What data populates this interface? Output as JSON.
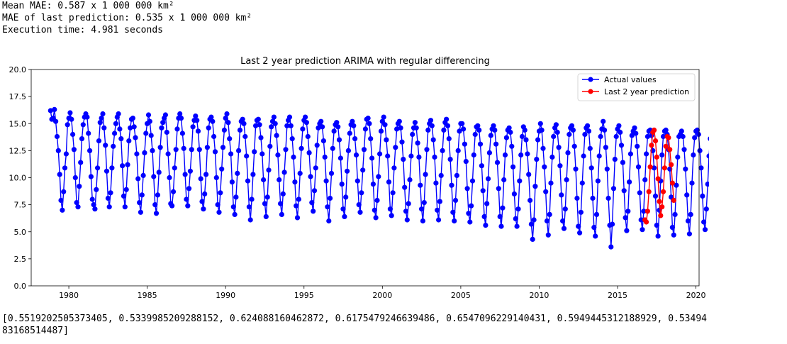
{
  "output": {
    "mean_mae": "Mean MAE: 0.587 x 1 000 000 km²",
    "last_mae": "MAE of last prediction: 0.535 x 1 000 000 km²",
    "exec_time": "Execution time: 4.981 seconds",
    "result_line1": "[0.5519202505373405, 0.5339985209288152, 0.624088160462872, 0.6175479246639486, 0.6547096229140431, 0.5949445312188929, 0.53494",
    "result_line2": "83168514487]"
  },
  "colors": {
    "actual": "#0000ff",
    "prediction": "#ff0000"
  },
  "chart_data": {
    "type": "line",
    "title": "Last 2 year prediction ARIMA with regular differencing",
    "xlabel": "",
    "ylabel": "",
    "xlim": [
      1977.6,
      2020.2
    ],
    "ylim": [
      0,
      20
    ],
    "xticks": [
      1980,
      1985,
      1990,
      1995,
      2000,
      2005,
      2010,
      2015,
      2020
    ],
    "yticks": [
      0.0,
      2.5,
      5.0,
      7.5,
      10.0,
      12.5,
      15.0,
      17.5,
      20.0
    ],
    "ytick_labels": [
      "0.0",
      "2.5",
      "5.0",
      "7.5",
      "10.0",
      "12.5",
      "15.0",
      "17.5",
      "20.0"
    ],
    "grid": false,
    "legend_position": "upper right",
    "legend": [
      "Actual values",
      "Last 2 year prediction"
    ],
    "series": [
      {
        "name": "Actual values",
        "color": "#0000ff",
        "start": "1978-11",
        "values": [
          16.2,
          15.4,
          15.5,
          16.3,
          15.2,
          13.8,
          12.5,
          10.3,
          7.9,
          7.0,
          8.7,
          10.9,
          12.2,
          14.9,
          15.5,
          16.0,
          15.4,
          14.0,
          12.6,
          10.0,
          7.7,
          7.3,
          9.2,
          11.4,
          13.6,
          14.9,
          15.6,
          15.9,
          15.6,
          14.1,
          12.5,
          10.1,
          8.0,
          7.5,
          7.1,
          8.9,
          10.9,
          13.4,
          15.1,
          15.5,
          15.9,
          14.6,
          13.0,
          10.6,
          8.1,
          7.3,
          8.6,
          10.9,
          12.9,
          14.1,
          15.0,
          15.6,
          15.9,
          14.5,
          13.6,
          11.1,
          8.3,
          7.3,
          8.9,
          11.2,
          13.4,
          14.6,
          15.4,
          15.5,
          14.7,
          13.7,
          12.2,
          9.9,
          7.7,
          6.8,
          8.4,
          10.2,
          12.3,
          14.1,
          15.0,
          15.8,
          15.2,
          13.9,
          12.5,
          10.1,
          7.5,
          6.7,
          8.4,
          10.5,
          12.8,
          14.6,
          15.1,
          15.5,
          15.8,
          14.2,
          12.2,
          10.0,
          7.6,
          7.4,
          8.7,
          10.9,
          12.6,
          14.5,
          15.5,
          15.9,
          15.5,
          14.1,
          12.7,
          10.3,
          8.0,
          7.4,
          9.0,
          10.6,
          12.6,
          14.7,
          15.3,
          15.7,
          15.3,
          14.3,
          12.6,
          9.9,
          7.8,
          7.1,
          8.5,
          10.3,
          12.8,
          14.6,
          15.4,
          15.6,
          15.2,
          13.8,
          12.4,
          10.0,
          7.5,
          6.8,
          8.6,
          10.8,
          12.8,
          14.4,
          15.5,
          15.9,
          15.1,
          13.6,
          12.2,
          9.6,
          7.3,
          6.6,
          8.2,
          10.4,
          12.5,
          14.4,
          15.2,
          15.4,
          15.0,
          13.8,
          12.0,
          9.7,
          7.3,
          6.1,
          8.0,
          10.3,
          12.4,
          14.8,
          15.3,
          15.4,
          14.9,
          13.7,
          12.2,
          9.8,
          7.6,
          6.4,
          8.2,
          10.7,
          12.9,
          14.7,
          15.2,
          15.6,
          15.0,
          13.9,
          12.1,
          9.8,
          7.6,
          6.6,
          8.5,
          10.5,
          12.6,
          14.8,
          15.3,
          15.6,
          14.8,
          13.6,
          11.9,
          9.6,
          7.4,
          6.3,
          8.0,
          10.4,
          12.7,
          14.5,
          15.3,
          15.6,
          15.1,
          13.8,
          12.3,
          10.1,
          7.7,
          6.9,
          8.8,
          10.9,
          13.0,
          14.6,
          15.0,
          15.2,
          14.7,
          13.4,
          11.9,
          9.7,
          7.3,
          6.0,
          8.1,
          10.4,
          12.7,
          14.3,
          14.9,
          15.1,
          14.7,
          13.5,
          11.8,
          9.4,
          7.1,
          6.4,
          8.2,
          10.6,
          12.5,
          14.1,
          14.9,
          15.2,
          14.8,
          13.6,
          12.1,
          9.7,
          7.5,
          6.8,
          8.6,
          10.7,
          12.6,
          14.5,
          15.4,
          15.5,
          15.0,
          13.6,
          11.8,
          9.4,
          7.0,
          6.3,
          7.9,
          10.1,
          12.2,
          14.3,
          15.2,
          15.6,
          14.9,
          13.5,
          12.0,
          9.6,
          7.1,
          6.5,
          8.6,
          10.9,
          12.8,
          14.5,
          15.0,
          15.2,
          14.6,
          13.3,
          11.7,
          9.1,
          6.9,
          6.1,
          7.6,
          9.8,
          12.0,
          14.0,
          14.6,
          15.1,
          14.6,
          13.2,
          11.9,
          9.3,
          7.1,
          6.0,
          7.7,
          10.3,
          12.6,
          14.4,
          15.0,
          15.3,
          14.8,
          13.5,
          11.9,
          9.5,
          7.0,
          6.1,
          7.8,
          10.2,
          12.5,
          14.4,
          15.1,
          15.4,
          14.8,
          13.6,
          11.7,
          9.3,
          6.8,
          6.0,
          7.9,
          10.2,
          12.5,
          14.3,
          15.0,
          15.0,
          14.5,
          13.1,
          11.5,
          9.0,
          6.7,
          5.9,
          7.4,
          9.7,
          12.1,
          14.0,
          14.7,
          14.8,
          14.4,
          13.1,
          11.1,
          8.8,
          6.4,
          5.6,
          7.6,
          9.9,
          12.3,
          13.9,
          14.5,
          14.8,
          14.4,
          13.1,
          11.4,
          9.0,
          6.4,
          5.5,
          7.2,
          9.8,
          12.1,
          13.7,
          14.4,
          14.6,
          14.2,
          12.9,
          11.0,
          8.5,
          6.2,
          5.5,
          7.1,
          9.7,
          12.1,
          13.8,
          14.7,
          14.4,
          13.5,
          12.2,
          10.3,
          7.9,
          5.7,
          4.3,
          6.1,
          9.2,
          11.7,
          13.5,
          14.3,
          15.0,
          14.4,
          12.7,
          11.0,
          8.7,
          6.0,
          4.7,
          6.6,
          9.5,
          11.9,
          13.8,
          14.6,
          14.9,
          14.2,
          12.8,
          11.1,
          8.4,
          6.0,
          5.3,
          7.1,
          9.8,
          12.3,
          14.0,
          14.6,
          14.8,
          14.4,
          12.9,
          10.8,
          8.1,
          5.5,
          4.9,
          6.8,
          9.5,
          12.0,
          14.0,
          14.6,
          14.8,
          14.3,
          12.7,
          10.9,
          8.1,
          5.4,
          4.6,
          6.6,
          9.7,
          12.0,
          13.8,
          14.5,
          15.2,
          14.4,
          12.8,
          10.8,
          8.1,
          5.6,
          3.6,
          5.7,
          9.0,
          11.7,
          13.8,
          14.5,
          14.8,
          14.2,
          13.0,
          11.4,
          8.8,
          6.3,
          5.1,
          6.9,
          9.6,
          12.2,
          13.9,
          14.3,
          14.6,
          14.1,
          12.9,
          11.0,
          8.6,
          6.1,
          5.2,
          6.9,
          9.8,
          12.2,
          13.8,
          14.3,
          14.4,
          13.9,
          12.5,
          10.9,
          8.3,
          5.6,
          4.6,
          7.0,
          9.7,
          12.1,
          13.8,
          14.3,
          14.4,
          14.0,
          12.6,
          10.8,
          8.2,
          5.4,
          4.7,
          6.6,
          9.3,
          11.9,
          13.8,
          14.0,
          14.3,
          13.8,
          12.6,
          10.8,
          8.4,
          6.0,
          4.8,
          6.6,
          9.5,
          12.1,
          13.7,
          14.3,
          14.4,
          14.0,
          12.5,
          10.9,
          8.3,
          5.9,
          5.2,
          7.1,
          9.4,
          12.0,
          13.6,
          14.3
        ]
      },
      {
        "name": "Last 2 year prediction",
        "color": "#ff0000",
        "start": "2016-10",
        "values": [
          6.1,
          5.9,
          6.9,
          8.7,
          11.0,
          13.0,
          14.2,
          14.4,
          13.4,
          11.9,
          9.9,
          7.8,
          6.5,
          7.3,
          8.7,
          10.9,
          12.9,
          13.8,
          13.7,
          12.6,
          11.2,
          9.5,
          7.9
        ]
      }
    ]
  }
}
